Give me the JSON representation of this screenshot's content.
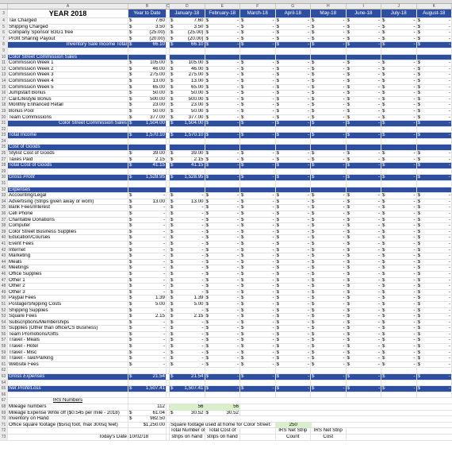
{
  "column_letters": [
    "",
    "A",
    "B",
    "C",
    "D",
    "E",
    "F",
    "G",
    "H",
    "I",
    "J",
    "K"
  ],
  "header": {
    "row": "3",
    "year": "YEAR 2018",
    "ytd": "Year to Date",
    "months": [
      "January-18",
      "February-18",
      "March-18",
      "April-18",
      "May-18",
      "June-18",
      "July-18",
      "August-18"
    ]
  },
  "rows": [
    {
      "n": "4",
      "label": "Tax Charged",
      "ytd": "7.60",
      "m": [
        "7.60",
        "-",
        "-",
        "-",
        "-",
        "-",
        "-",
        "-"
      ]
    },
    {
      "n": "5",
      "label": "Shipping Charged",
      "ytd": "3.50",
      "m": [
        "3.50",
        "-",
        "-",
        "-",
        "-",
        "-",
        "-",
        "-"
      ]
    },
    {
      "n": "6",
      "label": "Company Sponsor B3G1 free",
      "ytd": "(25.00)",
      "m": [
        "(25.00)",
        "-",
        "-",
        "-",
        "-",
        "-",
        "-",
        "-"
      ]
    },
    {
      "n": "7",
      "label": "Profit Sharing Payout",
      "ytd": "(20.00)",
      "m": [
        "(20.00)",
        "-",
        "-",
        "-",
        "-",
        "-",
        "-",
        "-"
      ]
    },
    {
      "n": "8",
      "label": "Inventory Sale Income Total",
      "ytd": "66.10",
      "m": [
        "66.10",
        "-",
        "-",
        "-",
        "-",
        "-",
        "-",
        "-"
      ],
      "style": "blue",
      "align": "right"
    },
    {
      "n": "9",
      "label": "",
      "ytd": "",
      "m": []
    },
    {
      "n": "10",
      "label": "Color Street Commission Sales",
      "ytd": "",
      "m": [],
      "style": "blue"
    },
    {
      "n": "11",
      "label": "Commission Week 1",
      "ytd": "105.00",
      "m": [
        "105.00",
        "-",
        "-",
        "-",
        "-",
        "-",
        "-",
        "-"
      ]
    },
    {
      "n": "12",
      "label": "Commission Week 2",
      "ytd": "46.00",
      "m": [
        "46.00",
        "-",
        "-",
        "-",
        "-",
        "-",
        "-",
        "-"
      ]
    },
    {
      "n": "13",
      "label": "Commission Week 3",
      "ytd": "275.00",
      "m": [
        "275.00",
        "-",
        "-",
        "-",
        "-",
        "-",
        "-",
        "-"
      ]
    },
    {
      "n": "14",
      "label": "Commission Week 4",
      "ytd": "13.00",
      "m": [
        "13.00",
        "-",
        "-",
        "-",
        "-",
        "-",
        "-",
        "-"
      ]
    },
    {
      "n": "15",
      "label": "Commission Week 5",
      "ytd": "65.00",
      "m": [
        "65.00",
        "-",
        "-",
        "-",
        "-",
        "-",
        "-",
        "-"
      ]
    },
    {
      "n": "16",
      "label": "  Jumpstart Bonus",
      "ytd": "50.00",
      "m": [
        "50.00",
        "-",
        "-",
        "-",
        "-",
        "-",
        "-",
        "-"
      ]
    },
    {
      "n": "17",
      "label": "Car/Lifestyle Bonus",
      "ytd": "500.00",
      "m": [
        "500.00",
        "-",
        "-",
        "-",
        "-",
        "-",
        "-",
        "-"
      ]
    },
    {
      "n": "18",
      "label": " Monthly Enhanced Retail",
      "ytd": "23.00",
      "m": [
        "23.00",
        "-",
        "-",
        "-",
        "-",
        "-",
        "-",
        "-"
      ]
    },
    {
      "n": "19",
      "label": " Bonus Pool",
      "ytd": "50.00",
      "m": [
        "50.00",
        "-",
        "-",
        "-",
        "-",
        "-",
        "-",
        "-"
      ]
    },
    {
      "n": "20",
      "label": "  Team Commissions",
      "ytd": "377.00",
      "m": [
        "377.00",
        "-",
        "-",
        "-",
        "-",
        "-",
        "-",
        "-"
      ]
    },
    {
      "n": "21",
      "label": "Color Street Commission Sales",
      "ytd": "1,504.00",
      "m": [
        "1,504.00",
        "-",
        "-",
        "-",
        "-",
        "-",
        "-",
        "-"
      ],
      "style": "blue",
      "align": "right"
    },
    {
      "n": "22",
      "label": "",
      "ytd": "",
      "m": []
    },
    {
      "n": "23",
      "label": "Total Income",
      "ytd": "1,570.10",
      "m": [
        "1,570.10",
        "-",
        "-",
        "-",
        "-",
        "-",
        "-",
        "-"
      ],
      "style": "blue"
    },
    {
      "n": "24",
      "label": "",
      "ytd": "",
      "m": []
    },
    {
      "n": "25",
      "label": "Cost of Goods",
      "ytd": "",
      "m": [],
      "style": "blue"
    },
    {
      "n": "26",
      "label": "Stylist Cost of Goods",
      "ytd": "39.00",
      "m": [
        "39.00",
        "-",
        "-",
        "-",
        "-",
        "-",
        "-",
        "-"
      ]
    },
    {
      "n": "27",
      "label": "Taxes Paid",
      "ytd": "2.15",
      "m": [
        "2.15",
        "-",
        "-",
        "-",
        "-",
        "-",
        "-",
        "-"
      ]
    },
    {
      "n": "28",
      "label": "Total Cost of Goods",
      "ytd": "41.15",
      "m": [
        "41.15",
        "-",
        "-",
        "-",
        "-",
        "-",
        "-",
        "-"
      ],
      "style": "blue"
    },
    {
      "n": "29",
      "label": "",
      "ytd": "",
      "m": []
    },
    {
      "n": "30",
      "label": "Gross Profit",
      "ytd": "1,528.95",
      "m": [
        "1,528.95",
        "-",
        "-",
        "-",
        "-",
        "-",
        "-",
        "-"
      ],
      "style": "blue",
      "ital": true
    },
    {
      "n": "31",
      "label": "",
      "ytd": "",
      "m": []
    },
    {
      "n": "32",
      "label": "Expenses",
      "ytd": "",
      "m": [],
      "style": "blue"
    },
    {
      "n": "33",
      "label": "Accounting/Legal",
      "ytd": "-",
      "m": [
        "-",
        "-",
        "-",
        "-",
        "-",
        "-",
        "-",
        "-"
      ]
    },
    {
      "n": "34",
      "label": "Advertising (Strips given away or worn)",
      "ytd": "13.00",
      "m": [
        "13.00",
        "-",
        "-",
        "-",
        "-",
        "-",
        "-",
        "-"
      ]
    },
    {
      "n": "35",
      "label": "Bank Fees/Interest",
      "ytd": "-",
      "m": [
        "-",
        "-",
        "-",
        "-",
        "-",
        "-",
        "-",
        "-"
      ]
    },
    {
      "n": "36",
      "label": "Cell Phone",
      "ytd": "-",
      "m": [
        "-",
        "-",
        "-",
        "-",
        "-",
        "-",
        "-",
        "-"
      ]
    },
    {
      "n": "37",
      "label": "Charitable Donations",
      "ytd": "-",
      "m": [
        "-",
        "-",
        "-",
        "-",
        "-",
        "-",
        "-",
        "-"
      ]
    },
    {
      "n": "38",
      "label": "Computer",
      "ytd": "-",
      "m": [
        "-",
        "-",
        "-",
        "-",
        "-",
        "-",
        "-",
        "-"
      ]
    },
    {
      "n": "39",
      "label": "Color Street Business Supplies",
      "ytd": "-",
      "m": [
        "-",
        "-",
        "-",
        "-",
        "-",
        "-",
        "-",
        "-"
      ]
    },
    {
      "n": "40",
      "label": "Education/Courses",
      "ytd": "-",
      "m": [
        "-",
        "-",
        "-",
        "-",
        "-",
        "-",
        "-",
        "-"
      ]
    },
    {
      "n": "41",
      "label": "Event Fees",
      "ytd": "-",
      "m": [
        "-",
        "-",
        "-",
        "-",
        "-",
        "-",
        "-",
        "-"
      ]
    },
    {
      "n": "42",
      "label": "Internet",
      "ytd": "-",
      "m": [
        "-",
        "-",
        "-",
        "-",
        "-",
        "-",
        "-",
        "-"
      ]
    },
    {
      "n": "43",
      "label": "Marketing",
      "ytd": "-",
      "m": [
        "-",
        "-",
        "-",
        "-",
        "-",
        "-",
        "-",
        "-"
      ]
    },
    {
      "n": "44",
      "label": "Meals",
      "ytd": "-",
      "m": [
        "-",
        "-",
        "-",
        "-",
        "-",
        "-",
        "-",
        "-"
      ]
    },
    {
      "n": "45",
      "label": "Meetings",
      "ytd": "-",
      "m": [
        "-",
        "-",
        "-",
        "-",
        "-",
        "-",
        "-",
        "-"
      ]
    },
    {
      "n": "46",
      "label": "Office Supplies",
      "ytd": "-",
      "m": [
        "-",
        "-",
        "-",
        "-",
        "-",
        "-",
        "-",
        "-"
      ]
    },
    {
      "n": "47",
      "label": "Other 1",
      "ytd": "-",
      "m": [
        "-",
        "-",
        "-",
        "-",
        "-",
        "-",
        "-",
        "-"
      ]
    },
    {
      "n": "48",
      "label": "Other 2",
      "ytd": "-",
      "m": [
        "-",
        "-",
        "-",
        "-",
        "-",
        "-",
        "-",
        "-"
      ]
    },
    {
      "n": "49",
      "label": "Other 3",
      "ytd": "-",
      "m": [
        "-",
        "-",
        "-",
        "-",
        "-",
        "-",
        "-",
        "-"
      ]
    },
    {
      "n": "50",
      "label": "Paypal Fees",
      "ytd": "1.39",
      "m": [
        "1.39",
        "-",
        "-",
        "-",
        "-",
        "-",
        "-",
        "-"
      ]
    },
    {
      "n": "51",
      "label": "Postage/Shipping Costs",
      "ytd": "5.00",
      "m": [
        "5.00",
        "-",
        "-",
        "-",
        "-",
        "-",
        "-",
        "-"
      ]
    },
    {
      "n": "52",
      "label": "Shipping Supplies",
      "ytd": "-",
      "m": [
        "-",
        "-",
        "-",
        "-",
        "-",
        "-",
        "-",
        "-"
      ]
    },
    {
      "n": "53",
      "label": "Square Fees",
      "ytd": "2.15",
      "m": [
        "2.15",
        "-",
        "-",
        "-",
        "-",
        "-",
        "-",
        "-"
      ]
    },
    {
      "n": "54",
      "label": "Subscriptions/Memberships",
      "ytd": "-",
      "m": [
        "-",
        "-",
        "-",
        "-",
        "-",
        "-",
        "-",
        "-"
      ]
    },
    {
      "n": "55",
      "label": "Supplies (Other than office/CS Business)",
      "ytd": "-",
      "m": [
        "-",
        "-",
        "-",
        "-",
        "-",
        "-",
        "-",
        "-"
      ]
    },
    {
      "n": "56",
      "label": "Team Promotions/Gifts",
      "ytd": "-",
      "m": [
        "-",
        "-",
        "-",
        "-",
        "-",
        "-",
        "-",
        "-"
      ]
    },
    {
      "n": "57",
      "label": "Travel - Meals",
      "ytd": "-",
      "m": [
        "-",
        "-",
        "-",
        "-",
        "-",
        "-",
        "-",
        "-"
      ]
    },
    {
      "n": "58",
      "label": "Travel - Hotel",
      "ytd": "-",
      "m": [
        "-",
        "-",
        "-",
        "-",
        "-",
        "-",
        "-",
        "-"
      ]
    },
    {
      "n": "59",
      "label": "Travel - Misc",
      "ytd": "-",
      "m": [
        "-",
        "-",
        "-",
        "-",
        "-",
        "-",
        "-",
        "-"
      ]
    },
    {
      "n": "60",
      "label": "Travel - Taxi/Parking",
      "ytd": "-",
      "m": [
        "-",
        "-",
        "-",
        "-",
        "-",
        "-",
        "-",
        "-"
      ]
    },
    {
      "n": "61",
      "label": "Website Fees",
      "ytd": "-",
      "m": [
        "-",
        "-",
        "-",
        "-",
        "-",
        "-",
        "-",
        "-"
      ]
    },
    {
      "n": "62",
      "label": "",
      "ytd": "",
      "m": []
    },
    {
      "n": "63",
      "label": "Gross Expenses",
      "ytd": "21.54",
      "m": [
        "21.54",
        "-",
        "-",
        "-",
        "-",
        "-",
        "-",
        "-"
      ],
      "style": "blue",
      "ital": true
    },
    {
      "n": "64",
      "label": "",
      "ytd": "",
      "m": []
    },
    {
      "n": "65",
      "label": "Net Profit/Loss",
      "ytd": "1,507.41",
      "m": [
        "1,507.41",
        "-",
        "-",
        "-",
        "-",
        "-",
        "-",
        "-"
      ],
      "style": "blue",
      "ital": true
    },
    {
      "n": "66",
      "label": "",
      "ytd": "",
      "m": []
    }
  ],
  "irs": {
    "n67": "67",
    "heading": "IRS Numbers",
    "n68": "68",
    "mileage_label": "Mileage numbers",
    "mileage_ytd": "112",
    "mileage_jan": "56",
    "mileage_feb": "56",
    "n69": "69",
    "writeoff_label": "Mileage Expense Write off ($0.545 per mile - 2018)",
    "writeoff_ytd": "61.04",
    "writeoff_jan": "30.52",
    "writeoff_feb": "30.52",
    "n70": "70",
    "inventory_label": "Inventory on Hand",
    "inventory_ytd": "982.50",
    "n71": "71",
    "office_label": "Office square footage ($5/sq foot, max 300sq feet)",
    "office_ytd": "$1,250.00",
    "sqft_label": "Square footage used at home for Color Street:",
    "sqft_value": "250",
    "n72": "72",
    "h_strips": "Total Number of",
    "h_cost": "Total Cost of",
    "h_netstrip": "IRS Net Strip",
    "h_netstrip2": "IRS Net Strip",
    "n73": "73",
    "date_label": "Today's Date",
    "date_value": "10/02/18",
    "h_strips2": "strips on hand",
    "h_cost2": "strips on hand",
    "h_count": "Count",
    "h_cost3": "Cost"
  },
  "dollar_sign": "$",
  "colors": {
    "header_blue": "#2e4fa0",
    "highlight_green": "#d8f0c8"
  }
}
